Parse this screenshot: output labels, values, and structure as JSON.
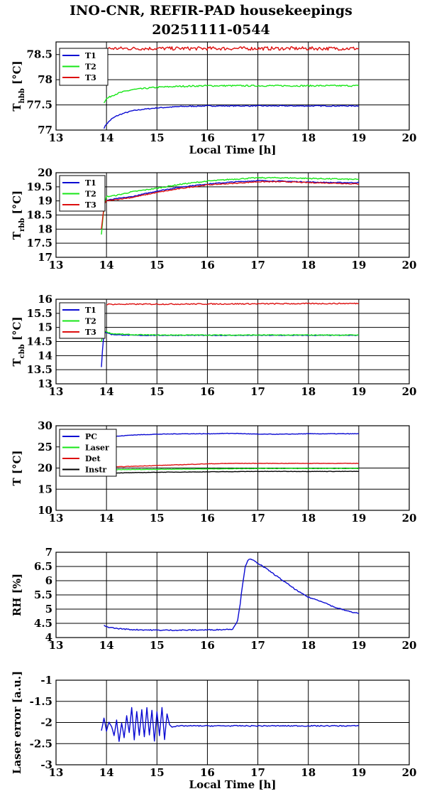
{
  "header": {
    "title_line1": "INO-CNR, REFIR-PAD housekeepings",
    "title_line2": "20251111-0544"
  },
  "colors": {
    "blue": "#0a0ad2",
    "green": "#17e617",
    "red": "#dd0f0f",
    "black": "#000000"
  },
  "chart_data": [
    {
      "type": "line",
      "ylabel_main": "T",
      "ylabel_sub": "hbb",
      "ylabel_unit": " [°C]",
      "xlabel": "Local Time [h]",
      "xlim": [
        13,
        20
      ],
      "xticks": [
        "13",
        "14",
        "15",
        "16",
        "17",
        "18",
        "19",
        "20"
      ],
      "ylim": [
        77,
        78.75
      ],
      "yticks": [
        77,
        77.5,
        78,
        78.5
      ],
      "ytick_labels": [
        "77",
        "77.5",
        "78",
        "78.5"
      ],
      "grid": true,
      "legend_position": "top-left",
      "series": [
        {
          "name": "T1",
          "color": "blue",
          "x": [
            13.95,
            14.0,
            14.1,
            14.2,
            14.3,
            14.5,
            14.7,
            15.0,
            15.5,
            16.0,
            16.5,
            17.0,
            17.5,
            18.0,
            18.5,
            19.0
          ],
          "y": [
            77.04,
            77.12,
            77.22,
            77.28,
            77.32,
            77.38,
            77.41,
            77.44,
            77.47,
            77.48,
            77.48,
            77.48,
            77.48,
            77.48,
            77.48,
            77.48
          ],
          "noise": 0.01
        },
        {
          "name": "T2",
          "color": "green",
          "x": [
            13.95,
            14.0,
            14.1,
            14.2,
            14.3,
            14.5,
            14.7,
            15.0,
            15.5,
            16.0,
            16.5,
            17.0,
            17.5,
            18.0,
            18.5,
            19.0
          ],
          "y": [
            77.55,
            77.62,
            77.68,
            77.72,
            77.75,
            77.8,
            77.82,
            77.85,
            77.87,
            77.88,
            77.88,
            77.88,
            77.88,
            77.88,
            77.88,
            77.88
          ],
          "noise": 0.015
        },
        {
          "name": "T3",
          "color": "red",
          "x": [
            13.95,
            19.0
          ],
          "y": [
            78.62,
            78.62
          ],
          "noise": 0.035
        }
      ]
    },
    {
      "type": "line",
      "ylabel_main": "T",
      "ylabel_sub": "rbb",
      "ylabel_unit": " [°C]",
      "xlabel": "",
      "xlim": [
        13,
        20
      ],
      "xticks": [
        "13",
        "14",
        "15",
        "16",
        "17",
        "18",
        "19",
        "20"
      ],
      "ylim": [
        17,
        20
      ],
      "yticks": [
        17,
        17.5,
        18,
        18.5,
        19,
        19.5,
        20
      ],
      "ytick_labels": [
        "17",
        "17.5",
        "18",
        "18.5",
        "19",
        "19.5",
        "20"
      ],
      "grid": true,
      "legend_position": "top-left",
      "series": [
        {
          "name": "T1",
          "color": "blue",
          "x": [
            14.0,
            14.2,
            14.5,
            15.0,
            15.5,
            16.0,
            16.5,
            17.0,
            17.5,
            18.0,
            18.5,
            19.0
          ],
          "y": [
            19.02,
            19.08,
            19.15,
            19.35,
            19.5,
            19.6,
            19.67,
            19.72,
            19.7,
            19.67,
            19.65,
            19.65
          ],
          "noise": 0.015
        },
        {
          "name": "T2",
          "color": "green",
          "x": [
            13.9,
            13.93,
            13.96,
            14.0,
            14.2,
            14.5,
            15.0,
            15.5,
            16.0,
            16.5,
            17.0,
            17.5,
            18.0,
            18.5,
            19.0
          ],
          "y": [
            17.8,
            18.4,
            18.9,
            19.15,
            19.2,
            19.32,
            19.45,
            19.6,
            19.7,
            19.77,
            19.82,
            19.82,
            19.8,
            19.78,
            19.76
          ],
          "noise": 0.02
        },
        {
          "name": "T3",
          "color": "red",
          "x": [
            13.9,
            13.93,
            13.96,
            14.0,
            14.2,
            14.5,
            15.0,
            15.5,
            16.0,
            16.5,
            17.0,
            17.5,
            18.0,
            18.5,
            19.0
          ],
          "y": [
            18.0,
            18.5,
            18.9,
            19.0,
            19.05,
            19.12,
            19.3,
            19.45,
            19.57,
            19.62,
            19.68,
            19.68,
            19.65,
            19.63,
            19.6
          ],
          "noise": 0.015
        }
      ]
    },
    {
      "type": "line",
      "ylabel_main": "T",
      "ylabel_sub": "cbb",
      "ylabel_unit": " [°C]",
      "xlabel": "",
      "xlim": [
        13,
        20
      ],
      "xticks": [
        "13",
        "14",
        "15",
        "16",
        "17",
        "18",
        "19",
        "20"
      ],
      "ylim": [
        13,
        16
      ],
      "yticks": [
        13,
        13.5,
        14,
        14.5,
        15,
        15.5,
        16
      ],
      "ytick_labels": [
        "13",
        "13.5",
        "14",
        "14.5",
        "15",
        "15.5",
        "16"
      ],
      "grid": true,
      "legend_position": "top-left",
      "series": [
        {
          "name": "T1",
          "color": "blue",
          "x": [
            13.9,
            13.92,
            13.95,
            14.0,
            14.1,
            14.5,
            15.0,
            16.0,
            17.0,
            18.0,
            19.0
          ],
          "y": [
            13.6,
            14.2,
            14.8,
            14.82,
            14.75,
            14.72,
            14.72,
            14.72,
            14.72,
            14.72,
            14.72
          ],
          "noise": 0.012
        },
        {
          "name": "T2",
          "color": "green",
          "x": [
            13.9,
            13.92,
            13.95,
            14.0,
            14.1,
            14.5,
            15.0,
            16.0,
            17.0,
            18.0,
            19.0
          ],
          "y": [
            14.5,
            14.7,
            14.85,
            14.85,
            14.78,
            14.74,
            14.73,
            14.73,
            14.73,
            14.73,
            14.73
          ],
          "noise": 0.015
        },
        {
          "name": "T3",
          "color": "red",
          "x": [
            14.0,
            19.0
          ],
          "y": [
            15.82,
            15.85
          ],
          "noise": 0.02
        }
      ]
    },
    {
      "type": "line",
      "ylabel_main": "T [°C]",
      "ylabel_sub": "",
      "ylabel_unit": "",
      "xlabel": "",
      "xlim": [
        13,
        20
      ],
      "xticks": [
        "13",
        "14",
        "15",
        "16",
        "17",
        "18",
        "19",
        "20"
      ],
      "ylim": [
        10,
        30
      ],
      "yticks": [
        10,
        15,
        20,
        25,
        30
      ],
      "ytick_labels": [
        "10",
        "15",
        "20",
        "25",
        "30"
      ],
      "grid": true,
      "legend_position": "top-left",
      "series": [
        {
          "name": "PC",
          "color": "blue",
          "x": [
            13.95,
            14.0,
            14.2,
            14.5,
            15.0,
            15.5,
            16.0,
            16.5,
            17.0,
            17.5,
            18.0,
            18.5,
            19.0
          ],
          "y": [
            26.5,
            27.0,
            27.5,
            27.8,
            28.0,
            28.1,
            28.1,
            28.2,
            28.0,
            28.0,
            28.1,
            28.1,
            28.1
          ],
          "noise": 0.06
        },
        {
          "name": "Laser",
          "color": "green",
          "x": [
            14.0,
            15.0,
            16.0,
            17.0,
            18.0,
            19.0
          ],
          "y": [
            19.6,
            19.7,
            19.8,
            19.9,
            19.9,
            19.9
          ],
          "noise": 0.05
        },
        {
          "name": "Det",
          "color": "red",
          "x": [
            14.0,
            14.5,
            15.0,
            15.5,
            16.0,
            16.5,
            17.0,
            18.0,
            19.0
          ],
          "y": [
            20.2,
            20.4,
            20.6,
            20.8,
            21.0,
            21.1,
            21.1,
            21.1,
            21.1
          ],
          "noise": 0.05
        },
        {
          "name": "Instr",
          "color": "black",
          "x": [
            14.0,
            14.5,
            15.0,
            16.0,
            17.0,
            18.0,
            19.0
          ],
          "y": [
            18.8,
            18.9,
            19.0,
            19.1,
            19.2,
            19.2,
            19.2
          ],
          "noise": 0.04
        }
      ]
    },
    {
      "type": "line",
      "ylabel_main": "RH [%]",
      "ylabel_sub": "",
      "ylabel_unit": "",
      "xlabel": "",
      "xlim": [
        13,
        20
      ],
      "xticks": [
        "13",
        "14",
        "15",
        "16",
        "17",
        "18",
        "19",
        "20"
      ],
      "ylim": [
        4,
        7
      ],
      "yticks": [
        4,
        4.5,
        5,
        5.5,
        6,
        6.5,
        7
      ],
      "ytick_labels": [
        "4",
        "4.5",
        "5",
        "5.5",
        "6",
        "6.5",
        "7"
      ],
      "grid": true,
      "legend_position": "none",
      "series": [
        {
          "name": "RH",
          "color": "blue",
          "x": [
            13.95,
            14.0,
            14.2,
            14.5,
            15.0,
            15.5,
            16.0,
            16.3,
            16.5,
            16.6,
            16.65,
            16.7,
            16.75,
            16.8,
            16.85,
            16.9,
            17.0,
            17.2,
            17.5,
            17.8,
            18.0,
            18.3,
            18.5,
            18.8,
            19.0
          ],
          "y": [
            4.42,
            4.38,
            4.32,
            4.28,
            4.26,
            4.26,
            4.27,
            4.28,
            4.3,
            4.6,
            5.2,
            5.9,
            6.5,
            6.72,
            6.75,
            6.72,
            6.62,
            6.38,
            6.0,
            5.62,
            5.42,
            5.25,
            5.08,
            4.92,
            4.85
          ],
          "noise": 0.018
        }
      ]
    },
    {
      "type": "line",
      "ylabel_main": "Laser error [a.u.]",
      "ylabel_sub": "",
      "ylabel_unit": "",
      "xlabel": "Local Time [h]",
      "xlim": [
        13,
        20
      ],
      "xticks": [
        "13",
        "14",
        "15",
        "16",
        "17",
        "18",
        "19",
        "20"
      ],
      "ylim": [
        -3,
        -1
      ],
      "yticks": [
        -3,
        -2.5,
        -2,
        -1.5,
        -1
      ],
      "ytick_labels": [
        "-3",
        "-2.5",
        "-2",
        "-1.5",
        "-1"
      ],
      "grid": true,
      "legend_position": "none",
      "series": [
        {
          "name": "Laser error",
          "color": "blue",
          "x": [
            13.9,
            13.95,
            14.0,
            14.05,
            14.1,
            14.15,
            14.2,
            14.25,
            14.3,
            14.35,
            14.4,
            14.45,
            14.5,
            14.55,
            14.6,
            14.65,
            14.7,
            14.75,
            14.8,
            14.85,
            14.9,
            14.95,
            15.0,
            15.05,
            15.1,
            15.15,
            15.2,
            15.25,
            15.3,
            15.5,
            16.0,
            16.5,
            17.0,
            17.5,
            18.0,
            18.5,
            19.0
          ],
          "y": [
            -2.2,
            -1.9,
            -2.2,
            -2.0,
            -2.1,
            -2.3,
            -1.95,
            -2.45,
            -2.0,
            -2.35,
            -1.85,
            -2.25,
            -1.65,
            -2.4,
            -1.75,
            -2.3,
            -1.7,
            -2.35,
            -1.65,
            -2.3,
            -1.7,
            -2.45,
            -1.75,
            -2.3,
            -1.65,
            -2.4,
            -1.8,
            -2.05,
            -2.1,
            -2.08,
            -2.08,
            -2.08,
            -2.08,
            -2.08,
            -2.08,
            -2.08,
            -2.08
          ],
          "noise": 0.012
        }
      ]
    }
  ]
}
